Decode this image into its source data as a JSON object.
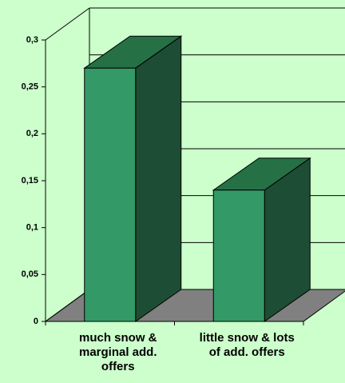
{
  "chart_data": {
    "type": "bar",
    "categories": [
      "much snow & marginal add. offers",
      "little snow & lots of add. offers"
    ],
    "values": [
      0.27,
      0.14
    ],
    "color": "#339966",
    "ylim": [
      0,
      0.3
    ],
    "yticks": [
      0,
      {
        "value": 0.05,
        "label": "0,05"
      },
      {
        "value": 0.1,
        "label": "0,1"
      },
      {
        "value": 0.15,
        "label": "0,15"
      },
      {
        "value": 0.2,
        "label": "0,2"
      },
      {
        "value": 0.25,
        "label": "0,25"
      },
      {
        "value": 0.3,
        "label": "0,3"
      }
    ],
    "grid": true
  }
}
